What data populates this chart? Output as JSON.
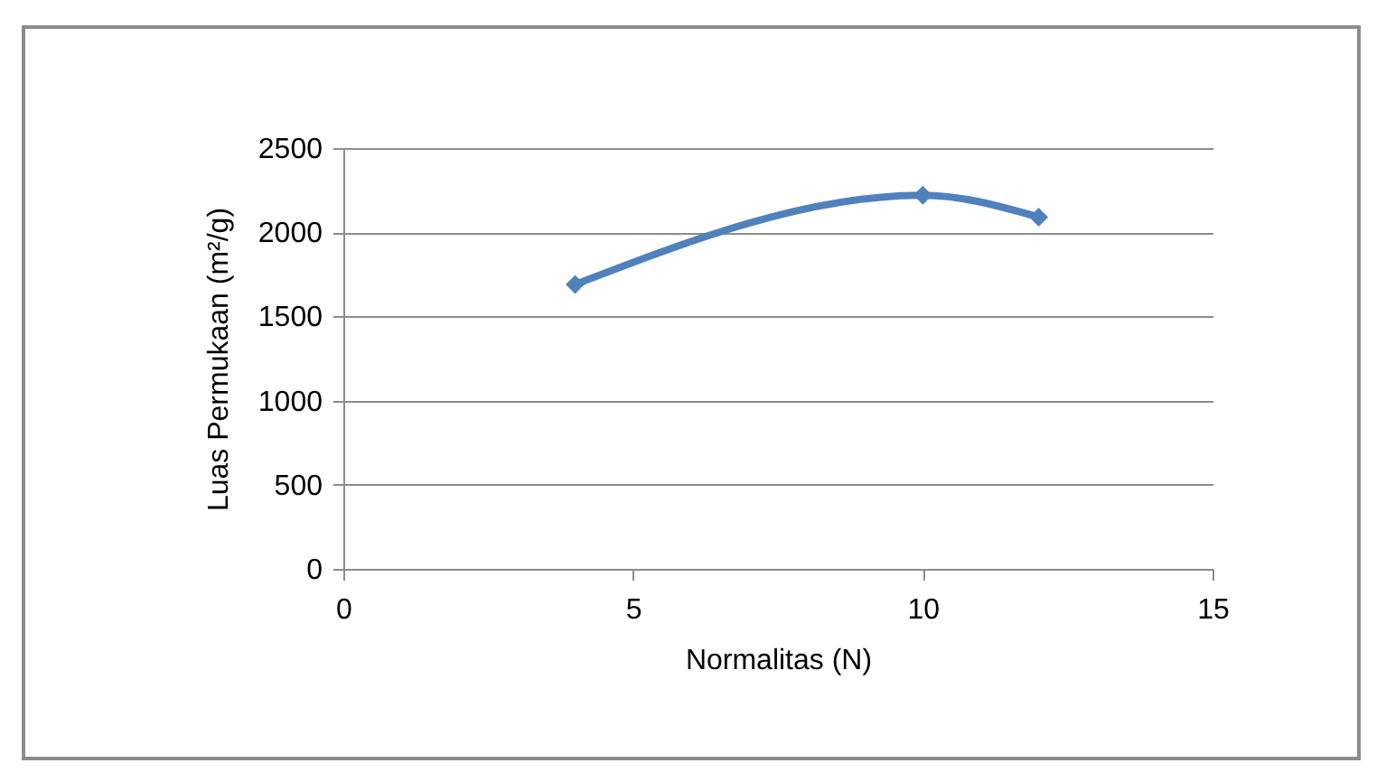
{
  "chart_data": {
    "type": "line",
    "xlabel": "Normalitas (N)",
    "ylabel": "Luas Permukaan (m²/g)",
    "x": [
      4,
      10,
      12
    ],
    "series": [
      {
        "color": "#4f81bd",
        "values": [
          1690,
          2220,
          2090
        ]
      }
    ],
    "xlim": [
      0,
      15
    ],
    "xticks": [
      0,
      5,
      10,
      15
    ],
    "ylim": [
      0,
      2500
    ],
    "yticks": [
      0,
      500,
      1000,
      1500,
      2000,
      2500
    ],
    "grid": "y",
    "marker": "diamond",
    "line_style": "solid"
  }
}
